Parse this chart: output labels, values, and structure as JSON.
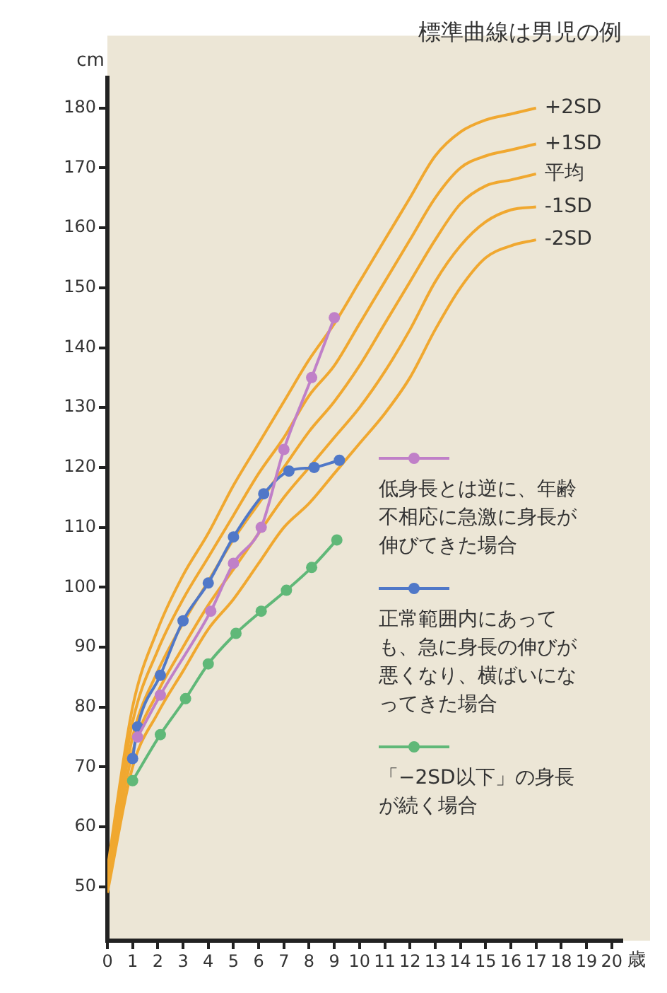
{
  "chart_data": {
    "type": "line",
    "title": "標準曲線は男児の例",
    "ylabel": "cm",
    "xlabel": "歳",
    "xlim": [
      0,
      20.4
    ],
    "xticks": [
      0,
      1,
      2,
      3,
      4,
      5,
      6,
      7,
      8,
      9,
      10,
      11,
      12,
      13,
      14,
      15,
      16,
      17,
      18,
      19,
      20
    ],
    "ylim": [
      41,
      185
    ],
    "yticks": [
      50,
      60,
      70,
      80,
      90,
      100,
      110,
      120,
      130,
      140,
      150,
      160,
      170,
      180
    ],
    "grid": false,
    "legend": "right",
    "marker": "circle",
    "series": [
      {
        "name": "+2SD",
        "color": "#f0a830",
        "marker": "none",
        "x": [
          0,
          1,
          2,
          3,
          4,
          5,
          6,
          7,
          8,
          9,
          10,
          11,
          12,
          13,
          14,
          15,
          16,
          17
        ],
        "values": [
          53,
          80,
          93,
          102,
          109,
          117,
          124,
          131,
          138,
          144,
          151,
          158,
          165,
          172,
          176,
          178,
          179,
          180
        ]
      },
      {
        "name": "+1SD",
        "color": "#f0a830",
        "marker": "none",
        "x": [
          0,
          1,
          2,
          3,
          4,
          5,
          6,
          7,
          8,
          9,
          10,
          11,
          12,
          13,
          14,
          15,
          16,
          17
        ],
        "values": [
          52,
          77.5,
          89.5,
          98,
          105,
          112,
          119,
          125,
          132,
          137,
          144,
          151,
          158,
          165,
          170,
          172,
          173,
          174
        ]
      },
      {
        "name": "平均",
        "color": "#f0a830",
        "marker": "none",
        "x": [
          0,
          1,
          2,
          3,
          4,
          5,
          6,
          7,
          8,
          9,
          10,
          11,
          12,
          13,
          14,
          15,
          16,
          17
        ],
        "values": [
          51,
          75,
          86,
          94,
          101,
          108,
          114,
          120,
          126,
          131,
          137,
          144,
          151,
          158,
          164,
          167,
          168,
          169
        ]
      },
      {
        "name": "-1SD",
        "color": "#f0a830",
        "marker": "none",
        "x": [
          0,
          1,
          2,
          3,
          4,
          5,
          6,
          7,
          8,
          9,
          10,
          11,
          12,
          13,
          14,
          15,
          16,
          17
        ],
        "values": [
          50,
          72.5,
          82.5,
          90,
          97,
          103,
          109,
          115,
          120,
          125,
          130,
          136,
          143,
          151,
          157,
          161,
          163,
          163.5
        ]
      },
      {
        "name": "-2SD",
        "color": "#f0a830",
        "marker": "none",
        "x": [
          0,
          1,
          2,
          3,
          4,
          5,
          6,
          7,
          8,
          9,
          10,
          11,
          12,
          13,
          14,
          15,
          16,
          17
        ],
        "values": [
          49,
          70,
          79,
          86,
          93,
          98,
          104,
          110,
          114,
          119,
          124,
          129,
          135,
          143,
          150,
          155,
          157,
          158
        ]
      },
      {
        "name": "低身長とは逆に、年齢不相応に急激に身長が伸びてきた場合",
        "color": "#c080c8",
        "x": [
          1.2,
          2.1,
          4.1,
          5,
          6.1,
          7,
          8.1,
          9
        ],
        "values": [
          75,
          82,
          96,
          104,
          110,
          123,
          135,
          145
        ]
      },
      {
        "name": "正常範囲内にあっても、急に身長の伸びが悪くなり、横ばいになってきた場合",
        "color": "#5078c8",
        "x": [
          1,
          1.2,
          2.1,
          3,
          4,
          5,
          6.2,
          7.2,
          8.2,
          9.2
        ],
        "values": [
          71.4,
          76.7,
          85.3,
          94.4,
          100.7,
          108.4,
          115.6,
          119.4,
          120,
          121.2
        ]
      },
      {
        "name": "「−2SD以下」の身長が続く場合",
        "color": "#60b878",
        "x": [
          1,
          2.1,
          3.1,
          4,
          5.1,
          6.1,
          7.1,
          8.1,
          9.1
        ],
        "values": [
          67.7,
          75.4,
          81.4,
          87.2,
          92.3,
          96,
          99.5,
          103.3,
          107.9
        ]
      }
    ]
  }
}
